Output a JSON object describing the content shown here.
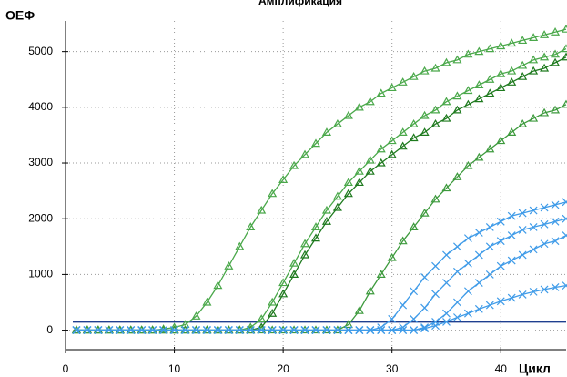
{
  "chart_data": {
    "type": "line",
    "title": "Амплификация",
    "ylabel": "ОЕФ",
    "xlabel": "Цикл",
    "x": [
      1,
      2,
      3,
      4,
      5,
      6,
      7,
      8,
      9,
      10,
      11,
      12,
      13,
      14,
      15,
      16,
      17,
      18,
      19,
      20,
      21,
      22,
      23,
      24,
      25,
      26,
      27,
      28,
      29,
      30,
      31,
      32,
      33,
      34,
      35,
      36,
      37,
      38,
      39,
      40,
      41,
      42,
      43,
      44,
      45,
      46
    ],
    "xlim": [
      0,
      46
    ],
    "xticks": [
      0,
      10,
      20,
      30,
      40
    ],
    "ylim": [
      -350,
      5550
    ],
    "yticks": [
      0,
      1000,
      2000,
      3000,
      4000,
      5000
    ],
    "grid": true,
    "threshold": 150,
    "threshold_color": "#1f3f8f",
    "series": [
      {
        "marker": "triangle",
        "color": "#4aa84a",
        "values": [
          0,
          0,
          0,
          0,
          0,
          0,
          0,
          0,
          20,
          50,
          100,
          250,
          500,
          800,
          1150,
          1500,
          1850,
          2150,
          2450,
          2700,
          2950,
          3150,
          3350,
          3550,
          3700,
          3850,
          4000,
          4100,
          4250,
          4350,
          4450,
          4550,
          4650,
          4700,
          4800,
          4850,
          4950,
          5000,
          5050,
          5100,
          5150,
          5200,
          5250,
          5300,
          5350,
          5400
        ]
      },
      {
        "marker": "triangle",
        "color": "#4aa84a",
        "values": [
          0,
          0,
          0,
          0,
          0,
          0,
          0,
          0,
          0,
          0,
          0,
          0,
          0,
          0,
          0,
          0,
          50,
          200,
          500,
          850,
          1200,
          1550,
          1850,
          2150,
          2400,
          2650,
          2850,
          3050,
          3250,
          3400,
          3550,
          3700,
          3850,
          3950,
          4100,
          4200,
          4300,
          4400,
          4500,
          4600,
          4650,
          4750,
          4850,
          4900,
          4950,
          5050
        ]
      },
      {
        "marker": "triangle",
        "color": "#1e7a1e",
        "values": [
          0,
          0,
          0,
          0,
          0,
          0,
          0,
          0,
          0,
          0,
          0,
          0,
          0,
          0,
          0,
          0,
          0,
          50,
          300,
          650,
          1000,
          1350,
          1650,
          1950,
          2200,
          2450,
          2650,
          2850,
          3000,
          3150,
          3300,
          3450,
          3550,
          3700,
          3800,
          3950,
          4050,
          4150,
          4250,
          4350,
          4450,
          4550,
          4650,
          4700,
          4800,
          4900
        ]
      },
      {
        "marker": "triangle",
        "color": "#3d9a3d",
        "values": [
          0,
          0,
          0,
          0,
          0,
          0,
          0,
          0,
          0,
          0,
          0,
          0,
          0,
          0,
          0,
          0,
          0,
          0,
          0,
          0,
          0,
          0,
          0,
          0,
          0,
          100,
          350,
          700,
          1000,
          1300,
          1600,
          1850,
          2100,
          2350,
          2550,
          2750,
          2950,
          3100,
          3250,
          3400,
          3550,
          3700,
          3800,
          3900,
          3950,
          4050
        ]
      },
      {
        "marker": "cross",
        "color": "#3f9be8",
        "values": [
          0,
          0,
          0,
          0,
          0,
          0,
          0,
          0,
          0,
          0,
          0,
          0,
          0,
          0,
          0,
          0,
          0,
          0,
          0,
          0,
          0,
          0,
          0,
          0,
          0,
          0,
          0,
          0,
          50,
          200,
          450,
          700,
          950,
          1150,
          1350,
          1500,
          1650,
          1750,
          1850,
          1950,
          2050,
          2100,
          2150,
          2200,
          2250,
          2300
        ]
      },
      {
        "marker": "cross",
        "color": "#3f9be8",
        "values": [
          0,
          0,
          0,
          0,
          0,
          0,
          0,
          0,
          0,
          0,
          0,
          0,
          0,
          0,
          0,
          0,
          0,
          0,
          0,
          0,
          0,
          0,
          0,
          0,
          0,
          0,
          0,
          0,
          0,
          0,
          50,
          200,
          400,
          650,
          850,
          1050,
          1200,
          1350,
          1500,
          1600,
          1700,
          1800,
          1850,
          1900,
          1950,
          2000
        ]
      },
      {
        "marker": "cross",
        "color": "#3f9be8",
        "values": [
          0,
          0,
          0,
          0,
          0,
          0,
          0,
          0,
          0,
          0,
          0,
          0,
          0,
          0,
          0,
          0,
          0,
          0,
          0,
          0,
          0,
          0,
          0,
          0,
          0,
          0,
          0,
          0,
          0,
          0,
          0,
          0,
          50,
          150,
          300,
          500,
          700,
          850,
          1000,
          1150,
          1250,
          1350,
          1450,
          1550,
          1600,
          1700
        ]
      },
      {
        "marker": "cross",
        "color": "#3f9be8",
        "values": [
          0,
          0,
          0,
          0,
          0,
          0,
          0,
          0,
          0,
          0,
          0,
          0,
          0,
          0,
          0,
          0,
          0,
          0,
          0,
          0,
          0,
          0,
          0,
          0,
          0,
          0,
          0,
          0,
          0,
          0,
          0,
          0,
          30,
          80,
          150,
          230,
          300,
          380,
          450,
          520,
          580,
          640,
          690,
          730,
          770,
          800
        ]
      }
    ]
  }
}
